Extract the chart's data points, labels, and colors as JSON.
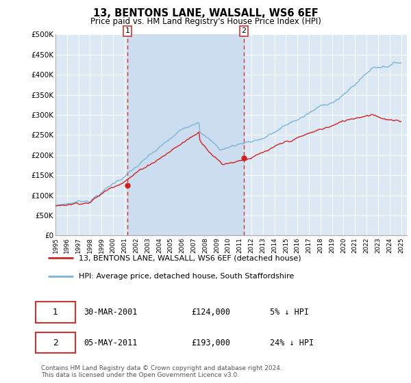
{
  "title": "13, BENTONS LANE, WALSALL, WS6 6EF",
  "subtitle": "Price paid vs. HM Land Registry's House Price Index (HPI)",
  "ylabel_ticks": [
    "£0",
    "£50K",
    "£100K",
    "£150K",
    "£200K",
    "£250K",
    "£300K",
    "£350K",
    "£400K",
    "£450K",
    "£500K"
  ],
  "ytick_values": [
    0,
    50000,
    100000,
    150000,
    200000,
    250000,
    300000,
    350000,
    400000,
    450000,
    500000
  ],
  "ylim": [
    0,
    500000
  ],
  "xlim_start": 1995.0,
  "xlim_end": 2025.5,
  "bg_color": "#dce9f5",
  "grid_color": "#ffffff",
  "hpi_color": "#7ab4d8",
  "price_color": "#cc2222",
  "dashed_line_color": "#cc3333",
  "shade_color": "#ccddf0",
  "marker1_x": 2001.25,
  "marker1_y": 124000,
  "marker1_label": "1",
  "marker2_x": 2011.35,
  "marker2_y": 193000,
  "marker2_label": "2",
  "legend_label1": "13, BENTONS LANE, WALSALL, WS6 6EF (detached house)",
  "legend_label2": "HPI: Average price, detached house, South Staffordshire",
  "footer": "Contains HM Land Registry data © Crown copyright and database right 2024.\nThis data is licensed under the Open Government Licence v3.0.",
  "xtick_years": [
    1995,
    1996,
    1997,
    1998,
    1999,
    2000,
    2001,
    2002,
    2003,
    2004,
    2005,
    2006,
    2007,
    2008,
    2009,
    2010,
    2011,
    2012,
    2013,
    2014,
    2015,
    2016,
    2017,
    2018,
    2019,
    2020,
    2021,
    2022,
    2023,
    2024,
    2025
  ]
}
